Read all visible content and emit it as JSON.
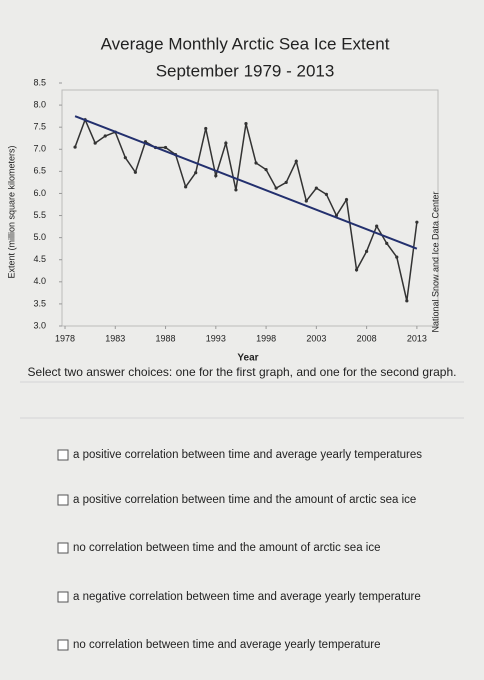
{
  "chart_data": {
    "type": "line",
    "title": "Average Monthly Arctic Sea Ice Extent",
    "subtitle": "September 1979 - 2013",
    "x_label": "Year",
    "y_label": "Extent (million square kilometers)",
    "source": "National Snow and Ice Data Center",
    "x": [
      1979,
      1980,
      1981,
      1982,
      1983,
      1984,
      1985,
      1986,
      1987,
      1988,
      1989,
      1990,
      1991,
      1992,
      1993,
      1994,
      1995,
      1996,
      1997,
      1998,
      1999,
      2000,
      2001,
      2002,
      2003,
      2004,
      2005,
      2006,
      2007,
      2008,
      2009,
      2010,
      2011,
      2012,
      2013
    ],
    "values": [
      7.05,
      7.67,
      7.14,
      7.3,
      7.39,
      6.81,
      6.48,
      7.17,
      7.04,
      7.04,
      6.88,
      6.15,
      6.47,
      7.47,
      6.4,
      7.14,
      6.08,
      7.58,
      6.69,
      6.54,
      6.12,
      6.25,
      6.73,
      5.83,
      6.12,
      5.98,
      5.5,
      5.86,
      4.27,
      4.69,
      5.26,
      4.87,
      4.56,
      3.57,
      5.35
    ],
    "color": "#333333",
    "trendline": {
      "x": [
        1979,
        2013
      ],
      "values": [
        7.75,
        4.75
      ],
      "color": "#23306e"
    },
    "xlim": [
      1977.7,
      2015.1
    ],
    "ylim": [
      3.0,
      8.5
    ],
    "xticks": [
      1978,
      1983,
      1988,
      1993,
      1998,
      2003,
      2008,
      2013
    ],
    "yticks": [
      {
        "value": 3,
        "label": "3.0"
      },
      3.5,
      {
        "value": 4,
        "label": "4.0"
      },
      4.5,
      {
        "value": 5,
        "label": "5.0"
      },
      5.5,
      {
        "value": 6,
        "label": "6.0"
      },
      6.5,
      {
        "value": 7,
        "label": "7.0"
      },
      7.5,
      {
        "value": 8,
        "label": "8.0"
      },
      8.5
    ]
  },
  "question": "Select two answer choices: one for the first graph, and one for the second graph.",
  "choices": [
    "a positive correlation between time and average yearly temperatures",
    "a positive correlation between time and the amount of arctic sea ice",
    "no correlation between time and the amount of arctic sea ice",
    "a negative correlation between time and average yearly temperature",
    "no correlation between time and average yearly temperature"
  ]
}
